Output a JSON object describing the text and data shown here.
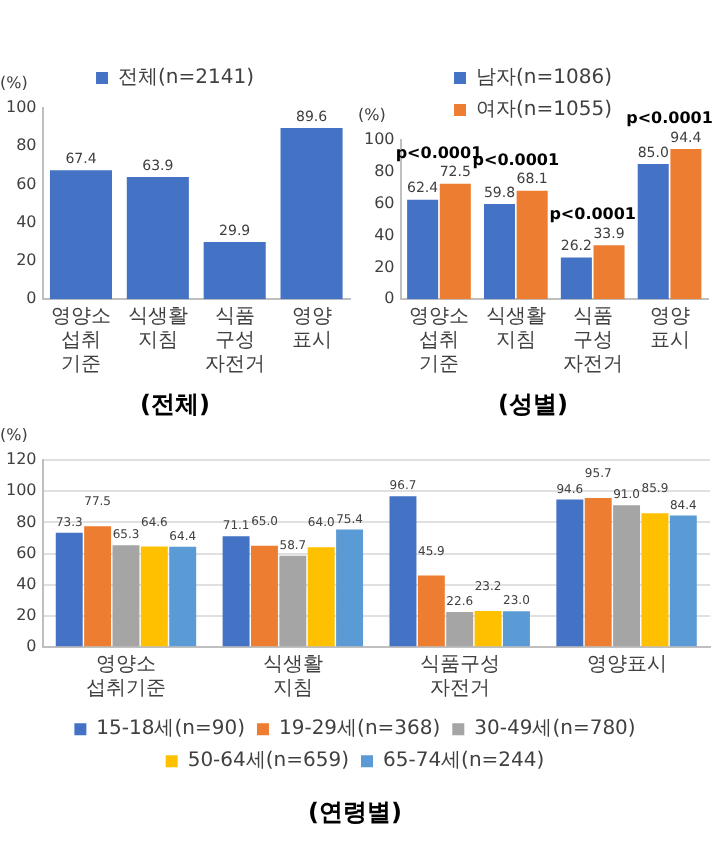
{
  "chart_data": [
    {
      "type": "bar",
      "title": "(전체)",
      "ylabel": "(%)",
      "categories": [
        "영양소 섭취기준",
        "식생활지침",
        "식품구성자전거",
        "영양표시"
      ],
      "series": [
        {
          "name": "전체(n=2141)",
          "color": "#4472c4",
          "values": [
            67.4,
            63.9,
            29.9,
            89.6
          ],
          "value_labels": [
            "67.4",
            "63.9",
            "29.9",
            "89.6"
          ]
        }
      ],
      "ylim": [
        0,
        100
      ],
      "yticks": [
        0,
        20,
        40,
        60,
        80,
        100
      ],
      "legend": "top",
      "grid": false
    },
    {
      "type": "bar",
      "title": "(성별)",
      "ylabel": "(%)",
      "categories": [
        "영양소 섭취기준",
        "식생활지침",
        "식품구성자전거",
        "영양표시"
      ],
      "series": [
        {
          "name": "남자(n=1086)",
          "color": "#4472c4",
          "values": [
            62.4,
            59.8,
            26.2,
            85.0
          ],
          "value_labels": [
            "62.4",
            "59.8",
            "26.2",
            "85.0"
          ]
        },
        {
          "name": "여자(n=1055)",
          "color": "#ed7d31",
          "values": [
            72.5,
            68.1,
            33.9,
            94.4
          ],
          "value_labels": [
            "72.5",
            "68.1",
            "33.9",
            "94.4"
          ]
        }
      ],
      "annotations": [
        "p<0.0001",
        "p<0.0001",
        "p<0.0001",
        "p<0.0001"
      ],
      "ylim": [
        0,
        100
      ],
      "yticks": [
        0,
        20,
        40,
        60,
        80,
        100
      ],
      "legend": "top",
      "grid": false
    },
    {
      "type": "bar",
      "title": "(연령별)",
      "ylabel": "(%)",
      "categories": [
        "영양소 섭취기준",
        "식생활지침",
        "식품구성자전거",
        "영양표시"
      ],
      "series": [
        {
          "name": "15-18세(n=90)",
          "color": "#4472c4",
          "values": [
            73.3,
            71.1,
            96.7,
            94.6
          ],
          "value_labels": [
            "73.3",
            "71.1",
            "96.7",
            "94.6"
          ]
        },
        {
          "name": "19-29세(n=368)",
          "color": "#ed7d31",
          "values": [
            77.5,
            65.0,
            45.9,
            95.7
          ],
          "value_labels": [
            "77.5",
            "65.0",
            "45.9",
            "95.7"
          ]
        },
        {
          "name": "30-49세(n=780)",
          "color": "#a5a5a5",
          "values": [
            65.3,
            58.7,
            22.6,
            91.0
          ],
          "value_labels": [
            "65.3",
            "58.7",
            "22.6",
            "91.0"
          ]
        },
        {
          "name": "50-64세(n=659)",
          "color": "#ffc000",
          "values": [
            64.6,
            64.0,
            23.2,
            85.9
          ],
          "value_labels": [
            "64.6",
            "64.0",
            "23.2",
            "85.9"
          ]
        },
        {
          "name": "65-74세(n=244)",
          "color": "#5b9bd5",
          "values": [
            64.4,
            75.4,
            23.0,
            84.4
          ],
          "value_labels": [
            "64.4",
            "75.4",
            "23.0",
            "84.4"
          ]
        }
      ],
      "ylim": [
        0,
        120
      ],
      "yticks": [
        0,
        20,
        40,
        60,
        80,
        100,
        120
      ],
      "legend": "bottom",
      "grid": "y"
    }
  ]
}
